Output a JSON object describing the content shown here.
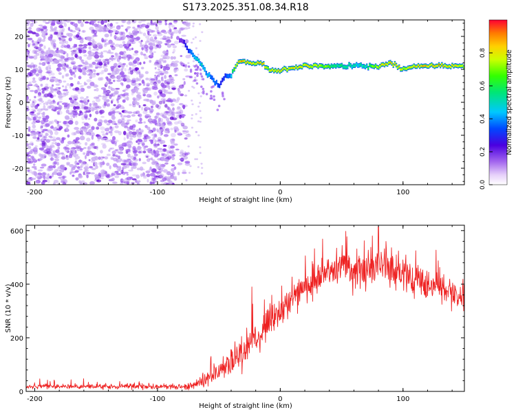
{
  "title": "S173.2025.351.08.34.R18",
  "colors": {
    "snr_line": "#ee2222",
    "speckle": "#9955ee",
    "speckle_dark": "#6a0fd8",
    "speckle_light": "#c8aaf2"
  },
  "chart_data": [
    {
      "type": "heatmap",
      "name": "spectrogram",
      "title": "S173.2025.351.08.34.R18",
      "xlabel": "Height of straight line (km)",
      "ylabel": "Frequency (Hz)",
      "xlim": [
        -207,
        150
      ],
      "ylim": [
        -25,
        25
      ],
      "xticks": [
        -200,
        -100,
        0,
        100
      ],
      "yticks": [
        -20,
        -10,
        0,
        10,
        20
      ],
      "colorbar": {
        "label": "Normalized spectral amplitude",
        "range": [
          0.0,
          1.0
        ],
        "ticks": [
          0.0,
          0.2,
          0.4,
          0.6,
          0.8
        ],
        "tick_labels": [
          "0.0",
          "0.2",
          "0.4",
          "0.6",
          "0.8"
        ],
        "colormap": "rainbow"
      },
      "noise_region": {
        "x_range": [
          -207,
          -75
        ],
        "y_range": [
          -25,
          25
        ],
        "amplitude": [
          0.05,
          0.3
        ]
      },
      "signal_track": {
        "x": [
          -80,
          -75,
          -70,
          -65,
          -60,
          -55,
          -50,
          -45,
          -40,
          -35,
          -30,
          -25,
          -20,
          -15,
          -10,
          -5,
          0,
          5,
          10,
          20,
          30,
          40,
          50,
          60,
          70,
          80,
          90,
          100,
          110,
          120,
          130,
          140,
          150
        ],
        "freq": [
          19,
          16,
          14,
          12,
          9,
          7,
          5,
          8,
          8,
          12,
          12.5,
          12,
          11.5,
          12,
          10,
          9.5,
          9.5,
          10,
          10.5,
          11,
          11,
          11,
          11,
          11,
          11,
          11,
          12,
          10,
          11,
          11,
          11,
          11,
          11
        ],
        "amplitude": [
          0.2,
          0.35,
          0.45,
          0.5,
          0.45,
          0.4,
          0.35,
          0.3,
          0.45,
          0.9,
          0.9,
          0.85,
          0.85,
          0.9,
          0.8,
          0.85,
          0.85,
          0.8,
          0.85,
          0.85,
          0.8,
          0.65,
          0.55,
          0.5,
          0.55,
          0.8,
          0.9,
          0.8,
          0.9,
          0.9,
          0.9,
          0.85,
          0.8
        ]
      }
    },
    {
      "type": "line",
      "name": "snr",
      "xlabel": "Height of straight line (km)",
      "ylabel": "SNR (10 * v/v)",
      "xlim": [
        -207,
        150
      ],
      "ylim": [
        0,
        620
      ],
      "xticks": [
        -200,
        -100,
        0,
        100
      ],
      "yticks": [
        0,
        200,
        400,
        600
      ],
      "envelope": {
        "x": [
          -207,
          -80,
          -70,
          -60,
          -50,
          -40,
          -30,
          -20,
          -10,
          0,
          10,
          20,
          30,
          40,
          50,
          60,
          70,
          80,
          90,
          100,
          110,
          120,
          130,
          140,
          150
        ],
        "mean": [
          18,
          18,
          25,
          45,
          75,
          110,
          150,
          200,
          250,
          300,
          350,
          390,
          420,
          440,
          460,
          450,
          460,
          470,
          460,
          440,
          420,
          400,
          390,
          370,
          360
        ],
        "noise": [
          8,
          8,
          15,
          25,
          35,
          50,
          60,
          60,
          55,
          50,
          45,
          45,
          45,
          50,
          55,
          60,
          60,
          60,
          55,
          55,
          55,
          50,
          50,
          50,
          50
        ]
      },
      "spikes": [
        {
          "x": -23,
          "y": 390
        },
        {
          "x": 80,
          "y": 615
        },
        {
          "x": 75,
          "y": 580
        }
      ]
    }
  ]
}
